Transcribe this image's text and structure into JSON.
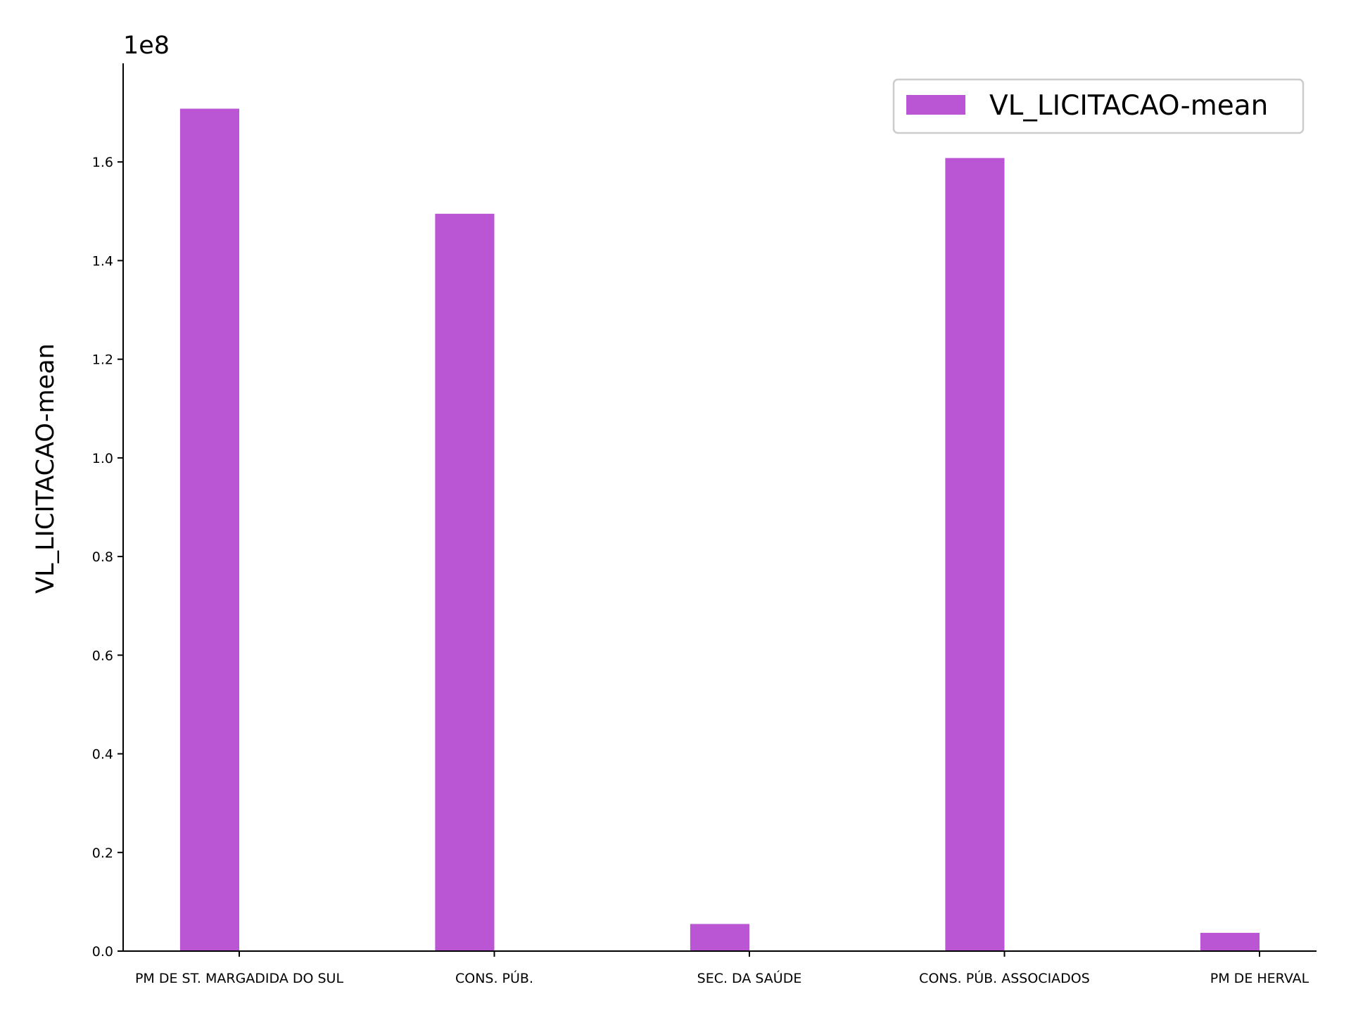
{
  "chart_data": {
    "type": "bar",
    "categories": [
      "PM DE ST. MARGADIDA DO SUL",
      "CONS. PÚB.",
      "SEC. DA SAÚDE",
      "CONS. PÚB. ASSOCIADOS",
      "PM DE HERVAL"
    ],
    "series": [
      {
        "name": "VL_LICITACAO-mean",
        "values": [
          170800000,
          149500000,
          5500000,
          160800000,
          3700000
        ],
        "color": "#ba55d3"
      }
    ],
    "title": "",
    "xlabel": "",
    "ylabel": "VL_LICITACAO-mean",
    "y_offset_label": "1e8",
    "y_offset_scale": 100000000,
    "ylim": [
      0,
      180000000
    ],
    "yticks": [
      0,
      20000000,
      40000000,
      60000000,
      80000000,
      100000000,
      120000000,
      140000000,
      160000000
    ],
    "ytick_labels": [
      "0.0",
      "0.2",
      "0.4",
      "0.6",
      "0.8",
      "1.0",
      "1.2",
      "1.4",
      "1.6"
    ],
    "grid": false,
    "legend": {
      "position": "top-right",
      "entries": [
        "VL_LICITACAO-mean"
      ]
    }
  }
}
